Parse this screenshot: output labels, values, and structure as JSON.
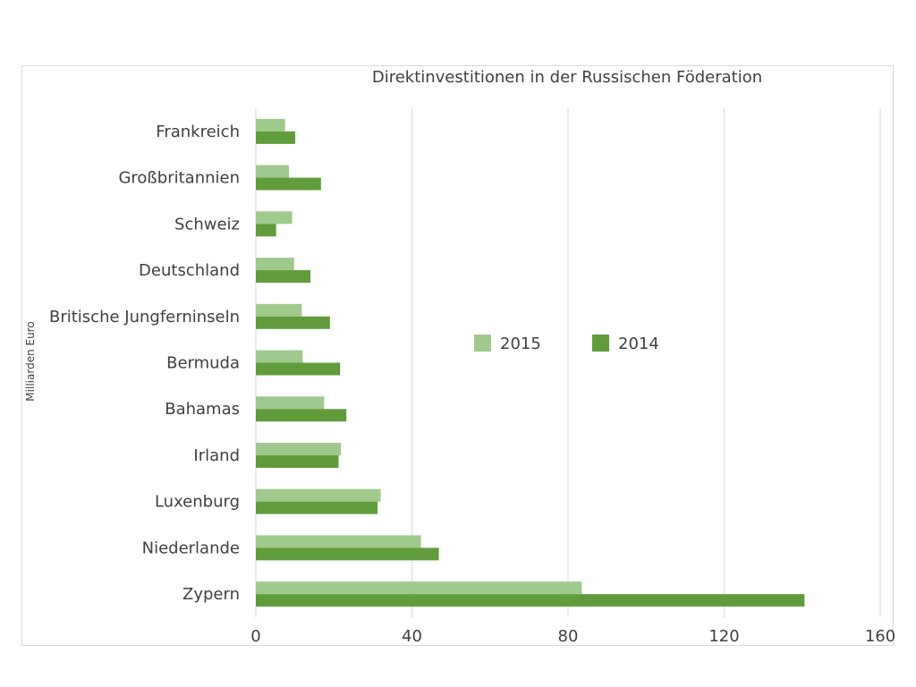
{
  "chart_data": {
    "type": "bar",
    "orientation": "horizontal",
    "title": "Direktinvestitionen in der Russischen Föderation",
    "ylabel": "Milliarden Euro",
    "xlabel": "",
    "categories": [
      "Frankreich",
      "Großbritannien",
      "Schweiz",
      "Deutschland",
      "Britische Jungferninseln",
      "Bermuda",
      "Bahamas",
      "Irland",
      "Luxenburg",
      "Niederlande",
      "Zypern"
    ],
    "series": [
      {
        "name": "2015",
        "color": "#a0c98e",
        "values": [
          7.5,
          8.5,
          9.3,
          9.8,
          11.8,
          12,
          17.5,
          21.8,
          32,
          42.3,
          83.5
        ]
      },
      {
        "name": "2014",
        "color": "#619c3c",
        "values": [
          10.1,
          16.7,
          5.2,
          14,
          19,
          21.6,
          23.2,
          21.2,
          31.2,
          46.9,
          140.6
        ]
      }
    ],
    "xlim": [
      0,
      160
    ],
    "xticks": [
      0,
      40,
      80,
      120,
      160
    ],
    "grid": "vertical",
    "legend_position": "center-right"
  }
}
